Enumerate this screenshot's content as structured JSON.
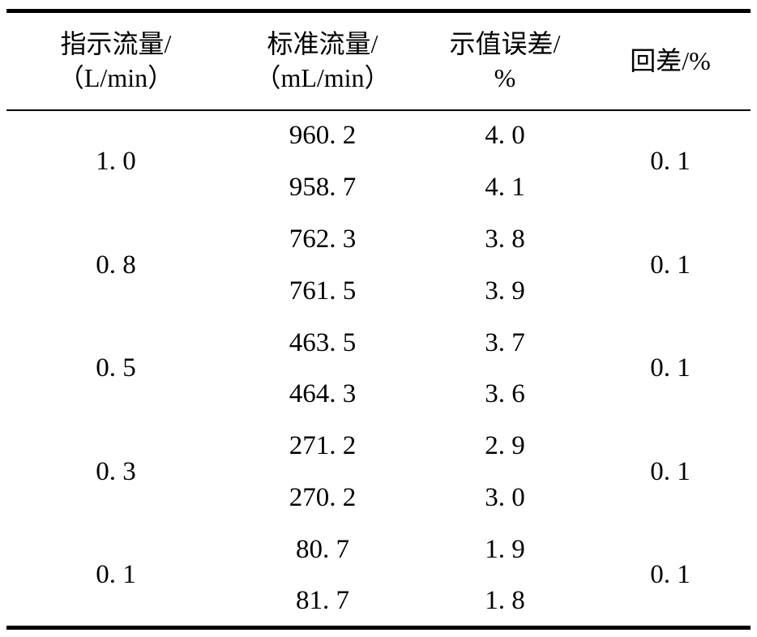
{
  "table": {
    "headers": [
      {
        "line1": "指示流量/",
        "line2": "（L/min）"
      },
      {
        "line1": "标准流量/",
        "line2": "（mL/min）"
      },
      {
        "line1": "示值误差/",
        "line2": "%"
      },
      {
        "line1": "回差/%",
        "line2": ""
      }
    ],
    "groups": [
      {
        "indicated": "1. 0",
        "rows": [
          {
            "standard": "960. 2",
            "error": "4. 0"
          },
          {
            "standard": "958. 7",
            "error": "4. 1"
          }
        ],
        "hysteresis": "0. 1"
      },
      {
        "indicated": "0. 8",
        "rows": [
          {
            "standard": "762. 3",
            "error": "3. 8"
          },
          {
            "standard": "761. 5",
            "error": "3. 9"
          }
        ],
        "hysteresis": "0. 1"
      },
      {
        "indicated": "0. 5",
        "rows": [
          {
            "standard": "463. 5",
            "error": "3. 7"
          },
          {
            "standard": "464. 3",
            "error": "3. 6"
          }
        ],
        "hysteresis": "0. 1"
      },
      {
        "indicated": "0. 3",
        "rows": [
          {
            "standard": "271. 2",
            "error": "2. 9"
          },
          {
            "standard": "270. 2",
            "error": "3. 0"
          }
        ],
        "hysteresis": "0. 1"
      },
      {
        "indicated": "0. 1",
        "rows": [
          {
            "standard": "80. 7",
            "error": "1. 9"
          },
          {
            "standard": "81. 7",
            "error": "1. 8"
          }
        ],
        "hysteresis": "0. 1"
      }
    ]
  },
  "colors": {
    "text": "#000000",
    "background": "#ffffff",
    "rule": "#000000"
  }
}
